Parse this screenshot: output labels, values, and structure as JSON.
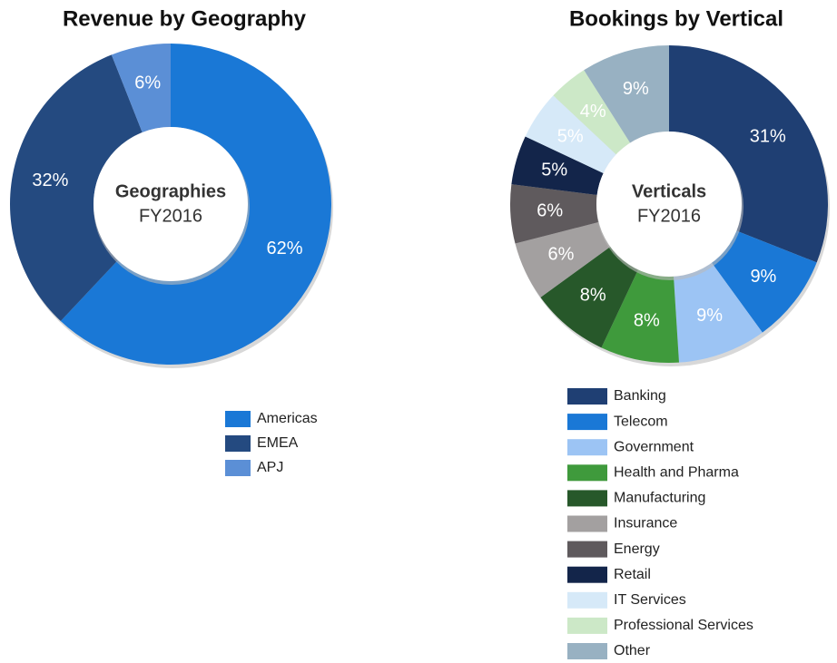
{
  "chart_data": [
    {
      "type": "pie",
      "title": "Revenue by Geography",
      "center_label": "Geographies",
      "center_sublabel": "FY2016",
      "categories": [
        "Americas",
        "EMEA",
        "APJ"
      ],
      "values": [
        62,
        32,
        6
      ],
      "value_labels": [
        "62%",
        "32%",
        "6%"
      ],
      "colors": [
        "#1a78d6",
        "#244a80",
        "#5b8fd6"
      ],
      "legend": "bottom"
    },
    {
      "type": "pie",
      "title": "Bookings by Vertical",
      "center_label": "Verticals",
      "center_sublabel": "FY2016",
      "categories": [
        "Banking",
        "Telecom",
        "Government",
        "Health and Pharma",
        "Manufacturing",
        "Insurance",
        "Energy",
        "Retail",
        "IT Services",
        "Professional Services",
        "Other"
      ],
      "values": [
        31,
        9,
        9,
        8,
        8,
        6,
        6,
        5,
        5,
        4,
        9
      ],
      "value_labels": [
        "31%",
        "9%",
        "9%",
        "8%",
        "8%",
        "6%",
        "6%",
        "5%",
        "5%",
        "4%",
        "9%"
      ],
      "colors": [
        "#1f3f73",
        "#1a78d6",
        "#9cc4f4",
        "#3f9a3c",
        "#27582a",
        "#a3a0a0",
        "#5f5a5d",
        "#13254a",
        "#d6e9f8",
        "#cce8c7",
        "#98b1c2"
      ],
      "legend": "bottom"
    }
  ]
}
